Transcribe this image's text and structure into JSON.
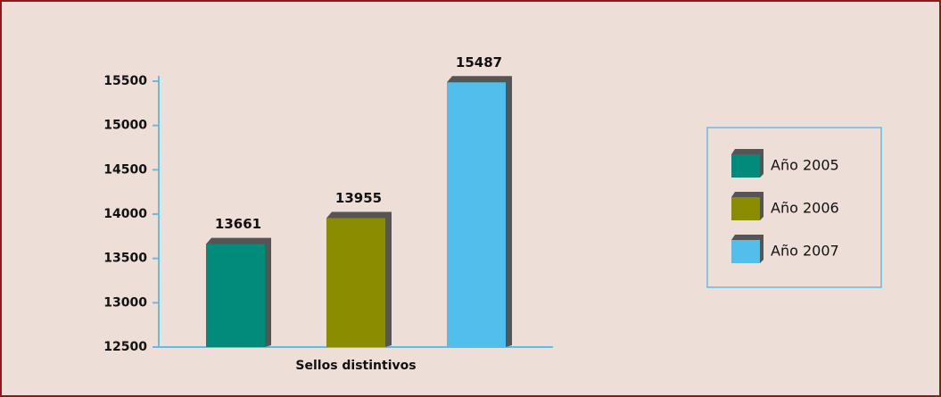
{
  "chart_data": {
    "type": "bar",
    "categories": [
      "Sellos distintivos"
    ],
    "series": [
      {
        "name": "Año 2005",
        "color": "#008b7b",
        "values": [
          13661
        ]
      },
      {
        "name": "Año 2006",
        "color": "#8b8c00",
        "values": [
          13955
        ]
      },
      {
        "name": "Año 2007",
        "color": "#52beec",
        "values": [
          15487
        ]
      }
    ],
    "ylim": [
      12500,
      15500
    ],
    "yticks": [
      12500,
      13000,
      13500,
      14000,
      14500,
      15000,
      15500
    ],
    "grid": false,
    "legend": "right"
  }
}
